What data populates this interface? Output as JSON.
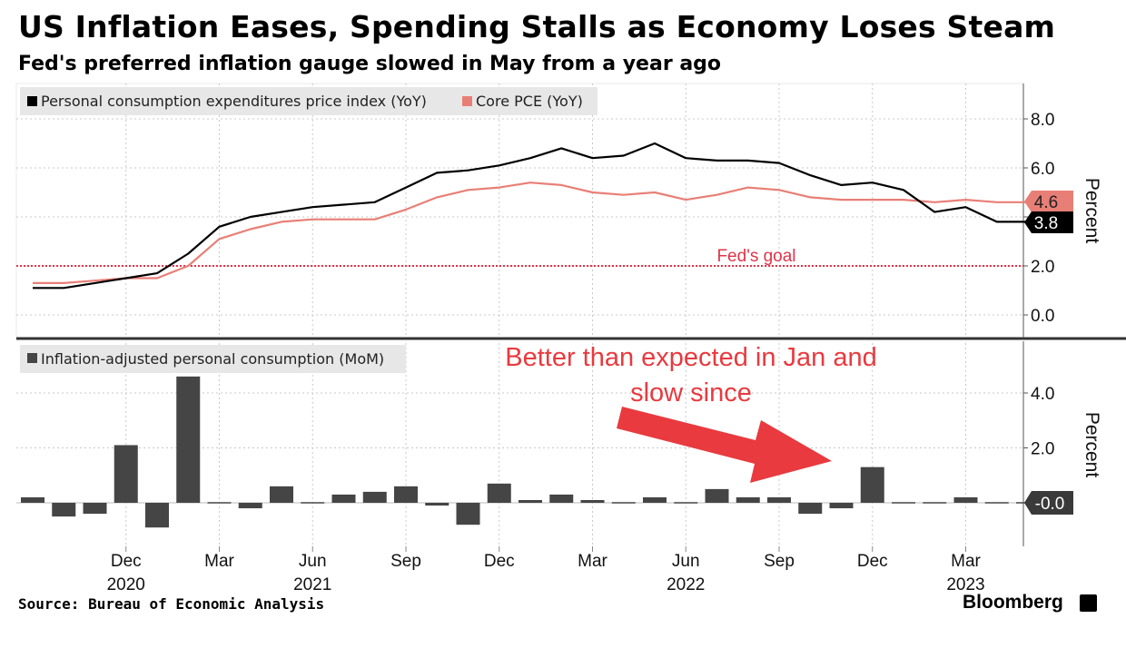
{
  "title": "US Inflation Eases, Spending Stalls as Economy Loses Steam",
  "subtitle": "Fed's preferred inflation gauge slowed in May from a year ago",
  "source": "Source: Bureau of Economic Analysis",
  "brand": "Bloomberg",
  "annotation": {
    "line1": "Better than expected in Jan and",
    "line2": "slow since",
    "color": "#e83a3f"
  },
  "colors": {
    "pce": "#000000",
    "core": "#e87f76",
    "bars": "#454545",
    "goal": "#e0344a"
  },
  "chart_data": [
    {
      "type": "line",
      "legend": [
        "Personal consumption expenditures price index (YoY)",
        "Core PCE (YoY)"
      ],
      "ylabel": "Percent",
      "ylim": [
        -1,
        9.5
      ],
      "yticks": [
        0,
        2,
        4,
        6,
        8
      ],
      "ytick_labels": [
        "0.0",
        "2.0",
        "4.0",
        "6.0",
        "8.0"
      ],
      "x": [
        "2020-09",
        "2020-10",
        "2020-11",
        "2020-12",
        "2021-01",
        "2021-02",
        "2021-03",
        "2021-04",
        "2021-05",
        "2021-06",
        "2021-07",
        "2021-08",
        "2021-09",
        "2021-10",
        "2021-11",
        "2021-12",
        "2022-01",
        "2022-02",
        "2022-03",
        "2022-04",
        "2022-05",
        "2022-06",
        "2022-07",
        "2022-08",
        "2022-09",
        "2022-10",
        "2022-11",
        "2022-12",
        "2023-01",
        "2023-02",
        "2023-03",
        "2023-04",
        "2023-05"
      ],
      "series": [
        {
          "name": "Personal consumption expenditures price index (YoY)",
          "values": [
            1.1,
            1.1,
            1.3,
            1.5,
            1.7,
            2.5,
            3.6,
            4.0,
            4.2,
            4.4,
            4.5,
            4.6,
            5.2,
            5.8,
            5.9,
            6.1,
            6.4,
            6.8,
            6.4,
            6.5,
            7.0,
            6.4,
            6.3,
            6.3,
            6.2,
            5.7,
            5.3,
            5.4,
            5.1,
            4.2,
            4.4,
            3.8,
            3.8
          ],
          "last_label": "3.8"
        },
        {
          "name": "Core PCE (YoY)",
          "values": [
            1.3,
            1.3,
            1.4,
            1.5,
            1.5,
            2.0,
            3.1,
            3.5,
            3.8,
            3.9,
            3.9,
            3.9,
            4.3,
            4.8,
            5.1,
            5.2,
            5.4,
            5.3,
            5.0,
            4.9,
            5.0,
            4.7,
            4.9,
            5.2,
            5.1,
            4.8,
            4.7,
            4.7,
            4.7,
            4.6,
            4.7,
            4.6,
            4.6
          ],
          "last_label": "4.6"
        }
      ],
      "reference_line": {
        "value": 2.0,
        "label": "Fed's goal"
      }
    },
    {
      "type": "bar",
      "legend": [
        "Inflation-adjusted personal consumption (MoM)"
      ],
      "ylabel": "Percent",
      "ylim": [
        -1.6,
        5.6
      ],
      "yticks": [
        2,
        4
      ],
      "ytick_labels": [
        "2.0",
        "4.0"
      ],
      "x": [
        "2020-09",
        "2020-10",
        "2020-11",
        "2020-12",
        "2021-01",
        "2021-02",
        "2021-03",
        "2021-04",
        "2021-05",
        "2021-06",
        "2021-07",
        "2021-08",
        "2021-09",
        "2021-10",
        "2021-11",
        "2021-12",
        "2022-01",
        "2022-02",
        "2022-03",
        "2022-04",
        "2022-05",
        "2022-06",
        "2022-07",
        "2022-08",
        "2022-09",
        "2022-10",
        "2022-11",
        "2022-12",
        "2023-01",
        "2023-02",
        "2023-03",
        "2023-04",
        "2023-05"
      ],
      "values": [
        0.2,
        -0.5,
        -0.4,
        2.1,
        -0.9,
        4.6,
        0.0,
        -0.2,
        0.6,
        0.0,
        0.3,
        0.4,
        0.6,
        -0.1,
        -0.8,
        0.7,
        0.1,
        0.3,
        0.1,
        0.0,
        0.2,
        0.0,
        0.5,
        0.2,
        0.2,
        -0.4,
        -0.2,
        1.3,
        0.0,
        0.0,
        0.2,
        0.0,
        0.0
      ],
      "last_label": "-0.0"
    }
  ],
  "x_axis": {
    "tick_labels": [
      {
        "month": "Dec",
        "year": "2020"
      },
      {
        "month": "Mar",
        "year": ""
      },
      {
        "month": "Jun",
        "year": "2021"
      },
      {
        "month": "Sep",
        "year": ""
      },
      {
        "month": "Dec",
        "year": ""
      },
      {
        "month": "Mar",
        "year": ""
      },
      {
        "month": "Jun",
        "year": "2022"
      },
      {
        "month": "Sep",
        "year": ""
      },
      {
        "month": "Dec",
        "year": ""
      },
      {
        "month": "Mar",
        "year": "2023"
      }
    ]
  }
}
